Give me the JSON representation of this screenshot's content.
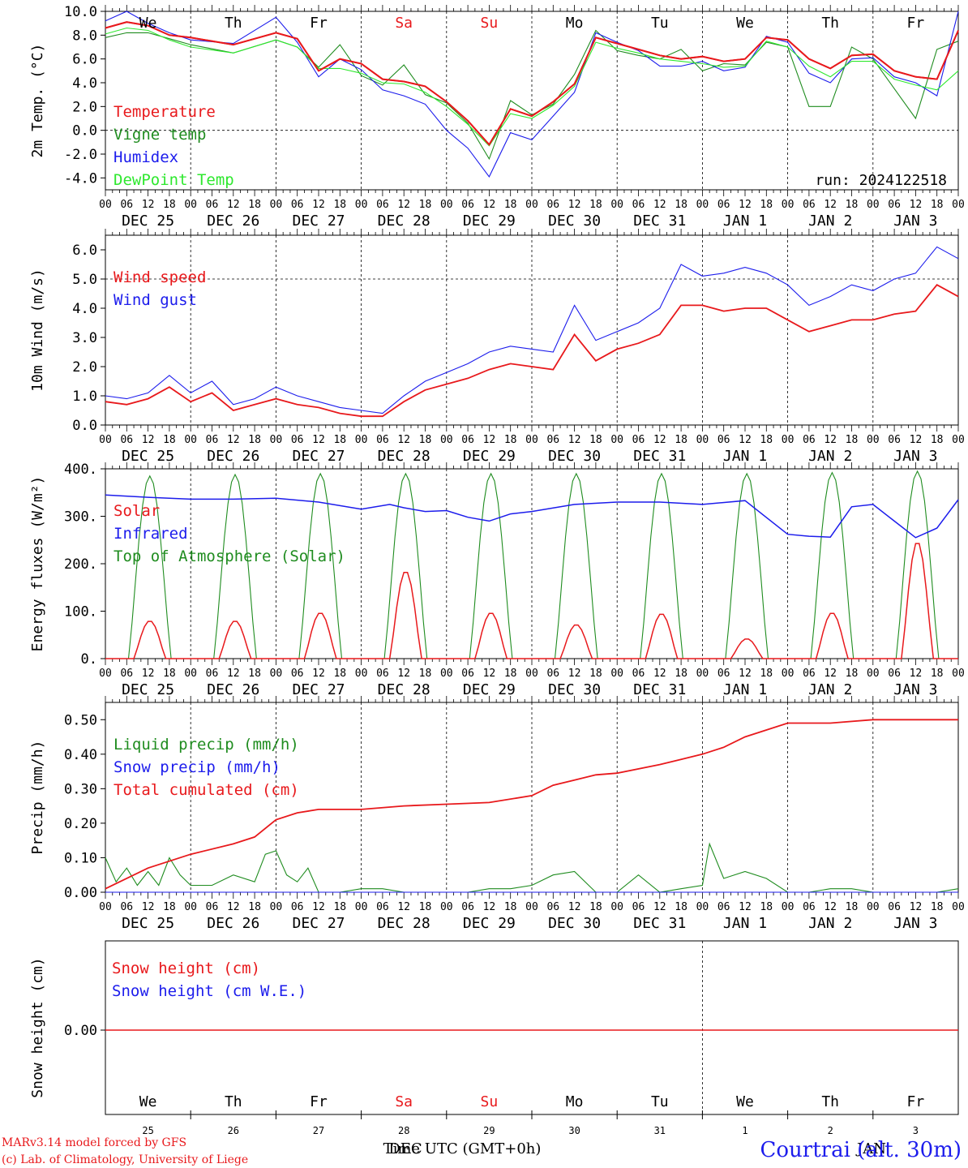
{
  "day_labels": [
    "We",
    "Th",
    "Fr",
    "Sa",
    "Su",
    "Mo",
    "Tu",
    "We",
    "Th",
    "Fr"
  ],
  "weekend_days": [
    3,
    4
  ],
  "date_labels": [
    "DEC 25",
    "DEC 26",
    "DEC 27",
    "DEC 28",
    "DEC 29",
    "DEC 30",
    "DEC 31",
    "JAN  1",
    "JAN  2",
    "JAN  3"
  ],
  "day_numbers": [
    "25",
    "26",
    "27",
    "28",
    "29",
    "30",
    "31",
    "1",
    "2",
    "3"
  ],
  "hour_ticks": [
    "00",
    "06",
    "12",
    "18"
  ],
  "footer": {
    "model": "MARv3.14 model forced by GFS",
    "credit": "(c) Lab. of Climatology, University of Liege",
    "xlabel": "Time UTC (GMT+0h)",
    "month_dec": "DEC",
    "month_jan": "JAN",
    "location": "Courtrai (alt. 30m)"
  },
  "colors": {
    "red": "#e8191c",
    "green": "#1f8c1f",
    "blue": "#1c1cec",
    "lime": "#2ee82e",
    "day_blue": "#1c1cec"
  },
  "chart_data": [
    {
      "type": "line",
      "ylabel": "2m Temp. (°C)",
      "ylim": [
        -5.0,
        10.0
      ],
      "yticks": [
        "10.0",
        "8.0",
        "6.0",
        "4.0",
        "2.0",
        "0.0",
        "-2.0",
        "-4.0"
      ],
      "ytick_values": [
        10,
        8,
        6,
        4,
        2,
        0,
        -2,
        -4
      ],
      "hline": 0,
      "annotation": "run: 2024122518",
      "x_unit": "hours from 2024-12-25 00 UTC",
      "series": [
        {
          "name": "Temperature",
          "color": "red",
          "x": [
            0,
            6,
            12,
            18,
            24,
            36,
            48,
            54,
            60,
            66,
            72,
            78,
            84,
            90,
            96,
            102,
            108,
            114,
            120,
            126,
            132,
            138,
            144,
            150,
            156,
            162,
            168,
            174,
            180,
            186,
            192,
            198,
            204,
            210,
            216,
            222,
            228,
            234,
            240
          ],
          "values": [
            8.6,
            9.1,
            8.8,
            8.0,
            7.8,
            7.2,
            8.2,
            7.7,
            5.0,
            6.0,
            5.6,
            4.3,
            4.1,
            3.7,
            2.4,
            0.8,
            -1.2,
            1.8,
            1.2,
            2.4,
            3.9,
            7.8,
            7.3,
            6.8,
            6.3,
            6.0,
            6.2,
            5.8,
            6.0,
            7.8,
            7.6,
            6.0,
            5.2,
            6.3,
            6.4,
            5.0,
            4.5,
            4.3,
            8.4
          ]
        },
        {
          "name": "Vigne temp",
          "color": "green",
          "x": [
            0,
            6,
            12,
            18,
            24,
            36,
            48,
            54,
            60,
            66,
            72,
            78,
            84,
            90,
            96,
            102,
            108,
            114,
            120,
            126,
            132,
            138,
            144,
            150,
            156,
            162,
            168,
            174,
            180,
            186,
            192,
            198,
            204,
            210,
            216,
            222,
            228,
            234,
            240
          ],
          "values": [
            7.8,
            8.2,
            8.2,
            7.7,
            7.2,
            6.5,
            7.6,
            7.0,
            5.3,
            7.2,
            4.6,
            3.8,
            5.5,
            3.0,
            2.3,
            0.6,
            -2.4,
            2.5,
            1.3,
            2.2,
            4.7,
            8.4,
            6.7,
            6.3,
            6.0,
            6.8,
            5.0,
            5.6,
            5.5,
            7.4,
            7.0,
            2.0,
            2.0,
            7.0,
            6.0,
            3.5,
            1.0,
            6.8,
            7.5
          ]
        },
        {
          "name": "Humidex",
          "color": "blue",
          "x": [
            0,
            6,
            12,
            18,
            24,
            36,
            48,
            54,
            60,
            66,
            72,
            78,
            84,
            90,
            96,
            102,
            108,
            114,
            120,
            126,
            132,
            138,
            144,
            150,
            156,
            162,
            168,
            174,
            180,
            186,
            192,
            198,
            204,
            210,
            216,
            222,
            228,
            234,
            240
          ],
          "values": [
            9.2,
            10.0,
            9.0,
            8.2,
            7.6,
            7.3,
            9.5,
            7.4,
            4.5,
            6.0,
            5.1,
            3.4,
            2.9,
            2.2,
            0.0,
            -1.5,
            -3.9,
            -0.2,
            -0.8,
            1.2,
            3.2,
            8.2,
            7.4,
            6.7,
            5.4,
            5.4,
            5.8,
            5.0,
            5.3,
            7.9,
            7.4,
            4.8,
            4.0,
            6.0,
            6.1,
            4.5,
            4.0,
            2.9,
            10.0
          ]
        },
        {
          "name": "DewPoint Temp",
          "color": "lime",
          "x": [
            0,
            6,
            12,
            18,
            24,
            36,
            48,
            54,
            60,
            66,
            72,
            78,
            84,
            90,
            96,
            102,
            108,
            114,
            120,
            126,
            132,
            138,
            144,
            150,
            156,
            162,
            168,
            174,
            180,
            186,
            192,
            198,
            204,
            210,
            216,
            222,
            228,
            234,
            240
          ],
          "values": [
            8.1,
            8.6,
            8.4,
            7.6,
            7.0,
            6.5,
            7.6,
            7.0,
            5.2,
            5.2,
            4.8,
            4.0,
            3.9,
            3.2,
            2.0,
            0.5,
            -1.3,
            1.4,
            1.0,
            2.1,
            3.7,
            7.4,
            6.9,
            6.5,
            6.0,
            5.8,
            5.6,
            5.3,
            5.4,
            7.5,
            7.0,
            5.4,
            4.5,
            5.8,
            5.8,
            4.3,
            3.8,
            3.4,
            5.0
          ]
        }
      ],
      "legend": [
        "Temperature",
        "Vigne temp",
        "Humidex",
        "DewPoint Temp"
      ],
      "legend_placement": "top-left"
    },
    {
      "type": "line",
      "ylabel": "10m Wind (m/s)",
      "ylim": [
        0.0,
        6.5
      ],
      "yticks": [
        "6.0",
        "5.0",
        "4.0",
        "3.0",
        "2.0",
        "1.0",
        "0.0"
      ],
      "ytick_values": [
        6,
        5,
        4,
        3,
        2,
        1,
        0
      ],
      "hline": 5,
      "x_unit": "hours from 2024-12-25 00 UTC",
      "series": [
        {
          "name": "Wind speed",
          "color": "red",
          "x": [
            0,
            6,
            12,
            18,
            24,
            30,
            36,
            42,
            48,
            54,
            60,
            66,
            72,
            78,
            84,
            90,
            96,
            102,
            108,
            114,
            120,
            126,
            132,
            138,
            144,
            150,
            156,
            162,
            168,
            174,
            180,
            186,
            192,
            198,
            204,
            210,
            216,
            222,
            228,
            234,
            240
          ],
          "values": [
            0.8,
            0.7,
            0.9,
            1.3,
            0.8,
            1.1,
            0.5,
            0.7,
            0.9,
            0.7,
            0.6,
            0.4,
            0.3,
            0.3,
            0.8,
            1.2,
            1.4,
            1.6,
            1.9,
            2.1,
            2.0,
            1.9,
            3.1,
            2.2,
            2.6,
            2.8,
            3.1,
            4.1,
            4.1,
            3.9,
            4.0,
            4.0,
            3.6,
            3.2,
            3.4,
            3.6,
            3.6,
            3.8,
            3.9,
            4.8,
            4.4
          ]
        },
        {
          "name": "Wind gust",
          "color": "blue",
          "x": [
            0,
            6,
            12,
            18,
            24,
            30,
            36,
            42,
            48,
            54,
            60,
            66,
            72,
            78,
            84,
            90,
            96,
            102,
            108,
            114,
            120,
            126,
            132,
            138,
            144,
            150,
            156,
            162,
            168,
            174,
            180,
            186,
            192,
            198,
            204,
            210,
            216,
            222,
            228,
            234,
            240
          ],
          "values": [
            1.0,
            0.9,
            1.1,
            1.7,
            1.1,
            1.5,
            0.7,
            0.9,
            1.3,
            1.0,
            0.8,
            0.6,
            0.5,
            0.4,
            1.0,
            1.5,
            1.8,
            2.1,
            2.5,
            2.7,
            2.6,
            2.5,
            4.1,
            2.9,
            3.2,
            3.5,
            4.0,
            5.5,
            5.1,
            5.2,
            5.4,
            5.2,
            4.8,
            4.1,
            4.4,
            4.8,
            4.6,
            5.0,
            5.2,
            6.1,
            5.7
          ]
        }
      ],
      "legend": [
        "Wind speed",
        "Wind gust"
      ],
      "legend_placement": "top-left"
    },
    {
      "type": "line",
      "ylabel": "Energy fluxes (W/m²)",
      "ylim": [
        0,
        400
      ],
      "yticks": [
        "400.",
        "300.",
        "200.",
        "100.",
        "0."
      ],
      "ytick_values": [
        400,
        300,
        200,
        100,
        0
      ],
      "x_unit": "hours from 2024-12-25 00 UTC",
      "solar_peaks": [
        80,
        80,
        97,
        185,
        97,
        72,
        95,
        42,
        97,
        247
      ],
      "toa_peaks": [
        385,
        388,
        390,
        390,
        390,
        390,
        390,
        390,
        392,
        395
      ],
      "series": [
        {
          "name": "Infrared",
          "color": "blue",
          "x": [
            0,
            12,
            24,
            36,
            48,
            60,
            72,
            80,
            84,
            90,
            96,
            102,
            108,
            114,
            120,
            132,
            144,
            156,
            168,
            180,
            192,
            198,
            204,
            210,
            216,
            222,
            228,
            234,
            240
          ],
          "values": [
            345,
            340,
            336,
            336,
            338,
            330,
            315,
            325,
            318,
            310,
            312,
            298,
            290,
            305,
            310,
            325,
            330,
            330,
            325,
            333,
            262,
            258,
            256,
            320,
            325,
            290,
            255,
            275,
            335
          ]
        },
        {
          "name": "Solar",
          "color": "red",
          "x": [],
          "values": []
        },
        {
          "name": "Top of Atmosphere (Solar)",
          "color": "green",
          "x": [],
          "values": []
        }
      ],
      "legend": [
        "Solar",
        "Infrared",
        "Top of Atmosphere (Solar)"
      ],
      "legend_placement": "top-left"
    },
    {
      "type": "line",
      "ylabel": "Precip (mm/h)",
      "ylim": [
        0.0,
        0.55
      ],
      "yticks": [
        "0.50",
        "0.40",
        "0.30",
        "0.20",
        "0.10",
        "0.00"
      ],
      "ytick_values": [
        0.5,
        0.4,
        0.3,
        0.2,
        0.1,
        0.0
      ],
      "x_unit": "hours from 2024-12-25 00 UTC",
      "series": [
        {
          "name": "Liquid precip (mm/h)",
          "color": "green",
          "x": [
            0,
            3,
            6,
            9,
            12,
            15,
            18,
            21,
            24,
            30,
            36,
            42,
            45,
            48,
            51,
            54,
            57,
            60,
            66,
            72,
            78,
            84,
            90,
            96,
            102,
            108,
            114,
            120,
            126,
            132,
            138,
            144,
            150,
            156,
            162,
            168,
            170,
            174,
            180,
            186,
            192,
            198,
            204,
            210,
            216,
            222,
            228,
            234,
            240
          ],
          "values": [
            0.1,
            0.03,
            0.07,
            0.02,
            0.06,
            0.02,
            0.1,
            0.05,
            0.02,
            0.02,
            0.05,
            0.03,
            0.11,
            0.12,
            0.05,
            0.03,
            0.07,
            0.0,
            0.0,
            0.01,
            0.01,
            0.0,
            0.0,
            0.0,
            0.0,
            0.01,
            0.01,
            0.02,
            0.05,
            0.06,
            0.0,
            0.0,
            0.05,
            0.0,
            0.01,
            0.02,
            0.14,
            0.04,
            0.06,
            0.04,
            0.0,
            0.0,
            0.01,
            0.01,
            0.0,
            0.0,
            0.0,
            0.0,
            0.01
          ]
        },
        {
          "name": "Snow precip (mm/h)",
          "color": "blue",
          "x": [
            0,
            240
          ],
          "values": [
            0.0,
            0.0
          ]
        },
        {
          "name": "Total cumulated (cm)",
          "color": "red",
          "x": [
            0,
            12,
            24,
            36,
            42,
            48,
            54,
            60,
            72,
            84,
            96,
            108,
            120,
            126,
            132,
            138,
            144,
            156,
            162,
            168,
            174,
            180,
            186,
            192,
            204,
            216,
            228,
            240
          ],
          "values": [
            0.01,
            0.07,
            0.11,
            0.14,
            0.16,
            0.21,
            0.23,
            0.24,
            0.24,
            0.25,
            0.255,
            0.26,
            0.28,
            0.31,
            0.325,
            0.34,
            0.345,
            0.37,
            0.385,
            0.4,
            0.42,
            0.45,
            0.47,
            0.49,
            0.49,
            0.5,
            0.5,
            0.5
          ]
        }
      ],
      "legend": [
        "Liquid precip (mm/h)",
        "Snow precip (mm/h)",
        "Total cumulated (cm)"
      ],
      "legend_placement": "top-left"
    },
    {
      "type": "line",
      "ylabel": "Snow height (cm)",
      "yticks": [
        "0.00"
      ],
      "ytick_values": [
        0
      ],
      "series": [
        {
          "name": "Snow height (cm)",
          "color": "red",
          "x": [
            0,
            240
          ],
          "values": [
            0,
            0
          ]
        },
        {
          "name": "Snow height (cm W.E.)",
          "color": "blue",
          "x": [],
          "values": []
        }
      ],
      "legend": [
        "Snow height (cm)",
        "Snow height (cm W.E.)"
      ],
      "legend_placement": "top-left"
    }
  ]
}
